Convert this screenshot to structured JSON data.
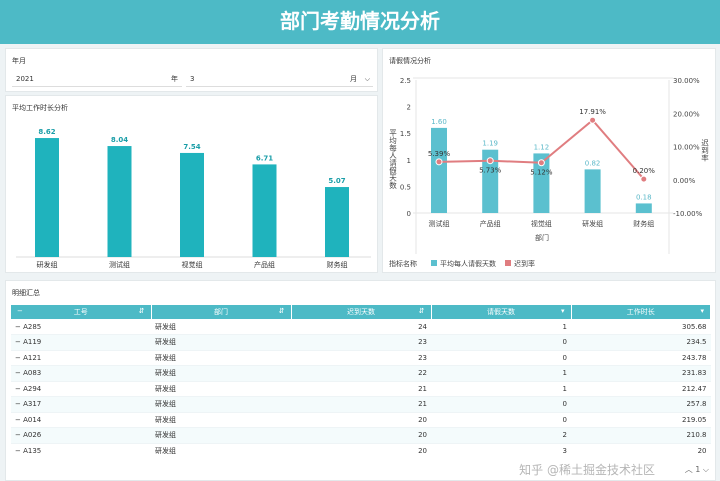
{
  "title": "部门考勤情况分析",
  "filter": {
    "label": "年月",
    "year": "2021",
    "year_unit": "年",
    "month": "3",
    "month_unit": "月"
  },
  "work_chart": {
    "title": "平均工作时长分析",
    "chart_data": {
      "type": "bar",
      "categories": [
        "研发组",
        "测试组",
        "视觉组",
        "产品组",
        "财务组"
      ],
      "values": [
        8.62,
        8.04,
        7.54,
        6.71,
        5.07
      ],
      "color": "#1fb3bd"
    }
  },
  "leave_chart": {
    "title": "请假情况分析",
    "chart_data": {
      "type": "bar+line",
      "categories": [
        "测试组",
        "产品组",
        "视觉组",
        "研发组",
        "财务组"
      ],
      "xlabel": "部门",
      "ylabel": "平均每人请假天数",
      "y2label": "迟到率",
      "ylim": [
        0,
        2.5
      ],
      "yticks": [
        "0",
        "0.5",
        "1",
        "1.5",
        "2",
        "2.5"
      ],
      "y2lim": [
        -10,
        30
      ],
      "y2ticks": [
        "-10.00%",
        "0.00%",
        "10.00%",
        "20.00%",
        "30.00%"
      ],
      "legend_title": "指标名称",
      "series": [
        {
          "name": "平均每人请假天数",
          "type": "bar",
          "values": [
            1.6,
            1.19,
            1.12,
            0.82,
            0.18
          ],
          "labels": [
            "1.60",
            "1.19",
            "1.12",
            "0.82",
            "0.18"
          ],
          "color": "#5bc0cf"
        },
        {
          "name": "迟到率",
          "type": "line",
          "values": [
            5.39,
            5.73,
            5.12,
            17.91,
            0.2
          ],
          "labels": [
            "5.39%",
            "5.73%",
            "5.12%",
            "17.91%",
            "0.20%"
          ],
          "color": "#e07d80"
        }
      ]
    }
  },
  "table": {
    "title": "明细汇总",
    "columns": [
      "工号",
      "部门",
      "迟到天数",
      "请假天数",
      "工作时长"
    ],
    "rows": [
      [
        "A285",
        "研发组",
        "24",
        "1",
        "305.68"
      ],
      [
        "A119",
        "研发组",
        "23",
        "0",
        "234.5"
      ],
      [
        "A121",
        "研发组",
        "23",
        "0",
        "243.78"
      ],
      [
        "A083",
        "研发组",
        "22",
        "1",
        "231.83"
      ],
      [
        "A294",
        "研发组",
        "21",
        "1",
        "212.47"
      ],
      [
        "A317",
        "研发组",
        "21",
        "0",
        "257.8"
      ],
      [
        "A014",
        "研发组",
        "20",
        "0",
        "219.05"
      ],
      [
        "A026",
        "研发组",
        "20",
        "2",
        "210.8"
      ],
      [
        "A135",
        "研发组",
        "20",
        "3",
        "20"
      ]
    ],
    "page": "1"
  },
  "watermark": "知乎 @稀土掘金技术社区"
}
